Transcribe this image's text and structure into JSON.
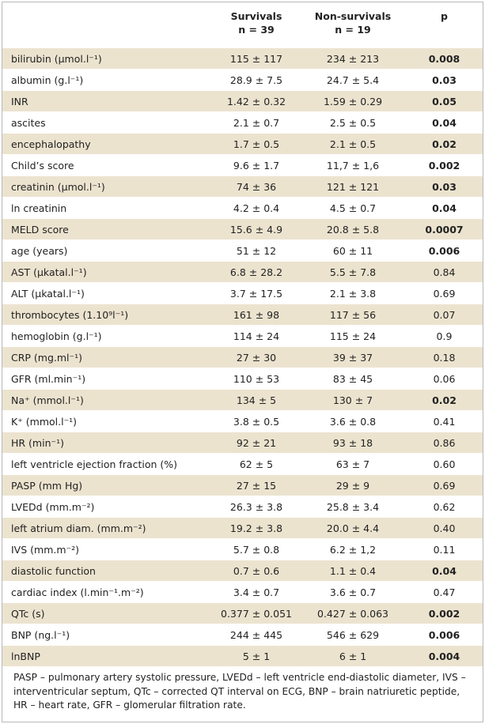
{
  "header": {
    "col_label": "",
    "survivals_title": "Survivals",
    "survivals_n": "n = 39",
    "non_survivals_title": "Non-survivals",
    "non_survivals_n": "n = 19",
    "p_title": "p"
  },
  "rows": [
    {
      "label": "bilirubin (µmol.l⁻¹)",
      "surv": "115 ± 117",
      "non": "234 ± 213",
      "p": "0.008",
      "sig": true
    },
    {
      "label": "albumin (g.l⁻¹)",
      "surv": "28.9 ± 7.5",
      "non": "24.7 ± 5.4",
      "p": "0.03",
      "sig": true
    },
    {
      "label": "INR",
      "surv": "1.42 ± 0.32",
      "non": "1.59 ± 0.29",
      "p": "0.05",
      "sig": true
    },
    {
      "label": "ascites",
      "surv": "2.1 ± 0.7",
      "non": "2.5 ± 0.5",
      "p": "0.04",
      "sig": true
    },
    {
      "label": "encephalopathy",
      "surv": "1.7 ± 0.5",
      "non": "2.1 ± 0.5",
      "p": "0.02",
      "sig": true
    },
    {
      "label": "Child’s score",
      "surv": "9.6 ± 1.7",
      "non": "11,7 ± 1,6",
      "p": "0.002",
      "sig": true
    },
    {
      "label": "creatinin (µmol.l⁻¹)",
      "surv": "74 ± 36",
      "non": "121 ± 121",
      "p": "0.03",
      "sig": true
    },
    {
      "label": "ln creatinin",
      "surv": "4.2 ± 0.4",
      "non": "4.5 ± 0.7",
      "p": "0.04",
      "sig": true
    },
    {
      "label": "MELD score",
      "surv": "15.6 ± 4.9",
      "non": "20.8 ± 5.8",
      "p": "0.0007",
      "sig": true
    },
    {
      "label": "age (years)",
      "surv": "51 ± 12",
      "non": "60 ± 11",
      "p": "0.006",
      "sig": true
    },
    {
      "label": "AST (µkatal.l⁻¹)",
      "surv": "6.8 ± 28.2",
      "non": "5.5 ± 7.8",
      "p": "0.84",
      "sig": false
    },
    {
      "label": "ALT (µkatal.l⁻¹)",
      "surv": "3.7 ± 17.5",
      "non": "2.1 ± 3.8",
      "p": "0.69",
      "sig": false
    },
    {
      "label": "thrombocytes (1.10⁹l⁻¹)",
      "surv": "161 ± 98",
      "non": "117 ± 56",
      "p": "0.07",
      "sig": false
    },
    {
      "label": "hemoglobin (g.l⁻¹)",
      "surv": "114 ± 24",
      "non": "115 ± 24",
      "p": "0.9",
      "sig": false
    },
    {
      "label": "CRP (mg.ml⁻¹)",
      "surv": "27 ± 30",
      "non": "39 ± 37",
      "p": "0.18",
      "sig": false
    },
    {
      "label": "GFR (ml.min⁻¹)",
      "surv": "110 ± 53",
      "non": "83 ± 45",
      "p": "0.06",
      "sig": false
    },
    {
      "label": "Na⁺ (mmol.l⁻¹)",
      "surv": "134 ± 5",
      "non": "130 ± 7",
      "p": "0.02",
      "sig": true
    },
    {
      "label": "K⁺ (mmol.l⁻¹)",
      "surv": "3.8 ± 0.5",
      "non": "3.6 ± 0.8",
      "p": "0.41",
      "sig": false
    },
    {
      "label": "HR (min⁻¹)",
      "surv": "92 ± 21",
      "non": "93 ± 18",
      "p": "0.86",
      "sig": false
    },
    {
      "label": "left ventricle ejection fraction (%)",
      "surv": "62 ± 5",
      "non": "63 ± 7",
      "p": "0.60",
      "sig": false
    },
    {
      "label": "PASP (mm Hg)",
      "surv": "27 ± 15",
      "non": "29 ± 9",
      "p": "0.69",
      "sig": false
    },
    {
      "label": "LVEDd (mm.m⁻²)",
      "surv": "26.3 ± 3.8",
      "non": "25.8 ± 3.4",
      "p": "0.62",
      "sig": false
    },
    {
      "label": "left atrium diam. (mm.m⁻²)",
      "surv": "19.2 ± 3.8",
      "non": "20.0 ± 4.4",
      "p": "0.40",
      "sig": false
    },
    {
      "label": "IVS (mm.m⁻²)",
      "surv": "5.7 ± 0.8",
      "non": "6.2 ± 1,2",
      "p": "0.11",
      "sig": false
    },
    {
      "label": "diastolic function",
      "surv": "0.7 ± 0.6",
      "non": "1.1 ± 0.4",
      "p": "0.04",
      "sig": true
    },
    {
      "label": "cardiac index (l.min⁻¹.m⁻²)",
      "surv": "3.4 ± 0.7",
      "non": "3.6 ± 0.7",
      "p": "0.47",
      "sig": false
    },
    {
      "label": "QTc (s)",
      "surv": "0.377 ± 0.051",
      "non": "0.427 ± 0.063",
      "p": "0.002",
      "sig": true
    },
    {
      "label": "BNP (ng.l⁻¹)",
      "surv": "244 ± 445",
      "non": "546 ± 629",
      "p": "0.006",
      "sig": true
    },
    {
      "label": "lnBNP",
      "surv": "5 ± 1",
      "non": "6 ± 1",
      "p": "0.004",
      "sig": true
    }
  ],
  "footnote": "PASP – pulmonary artery systolic pressure, LVEDd – left ventricle end-diastolic diameter, IVS – interventricular septum, QTc – corrected QT interval on ECG, BNP – brain natriuretic peptide, HR – heart rate, GFR – glomerular filtration rate."
}
